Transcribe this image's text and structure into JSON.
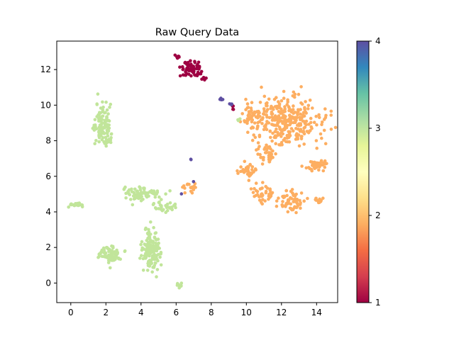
{
  "chart_data": {
    "type": "scatter",
    "title": "Raw Query Data",
    "xlabel": "",
    "ylabel": "",
    "xlim": [
      -0.8,
      15.2
    ],
    "ylim": [
      -1.1,
      13.6
    ],
    "xticks": [
      0,
      2,
      4,
      6,
      8,
      10,
      12,
      14
    ],
    "yticks": [
      0,
      2,
      4,
      6,
      8,
      10,
      12
    ],
    "grid": false,
    "colorbar": {
      "min": 1,
      "max": 4,
      "ticks": [
        1,
        2,
        3,
        4
      ],
      "colormap": "Spectral",
      "stops": [
        "#9e0142",
        "#d53e4f",
        "#f46d43",
        "#fdae61",
        "#fee08b",
        "#ffffbf",
        "#e6f598",
        "#abdda4",
        "#66c2a5",
        "#3288bd",
        "#5e4fa2"
      ]
    },
    "series": [
      {
        "label_value": 1,
        "color": "#9e0142",
        "clusters": [
          {
            "cx": 6.9,
            "cy": 12.0,
            "rx": 0.55,
            "ry": 0.45,
            "n": 70
          },
          {
            "cx": 6.1,
            "cy": 12.7,
            "rx": 0.15,
            "ry": 0.12,
            "n": 8
          },
          {
            "cx": 7.6,
            "cy": 11.5,
            "rx": 0.12,
            "ry": 0.08,
            "n": 5
          },
          {
            "cx": 9.25,
            "cy": 9.85,
            "rx": 0.08,
            "ry": 0.12,
            "n": 4
          }
        ]
      },
      {
        "label_value": 2,
        "color": "#fdae61",
        "clusters": [
          {
            "cx": 12.3,
            "cy": 9.2,
            "rx": 1.9,
            "ry": 1.35,
            "n": 320
          },
          {
            "cx": 10.2,
            "cy": 9.5,
            "rx": 0.5,
            "ry": 0.5,
            "n": 30
          },
          {
            "cx": 13.9,
            "cy": 6.6,
            "rx": 0.5,
            "ry": 0.3,
            "n": 40
          },
          {
            "cx": 10.1,
            "cy": 6.3,
            "rx": 0.55,
            "ry": 0.35,
            "n": 40
          },
          {
            "cx": 11.2,
            "cy": 7.2,
            "rx": 0.6,
            "ry": 0.5,
            "n": 35
          },
          {
            "cx": 11.0,
            "cy": 5.0,
            "rx": 0.55,
            "ry": 0.55,
            "n": 40
          },
          {
            "cx": 12.6,
            "cy": 4.6,
            "rx": 0.7,
            "ry": 0.6,
            "n": 60
          },
          {
            "cx": 14.1,
            "cy": 4.6,
            "rx": 0.25,
            "ry": 0.2,
            "n": 12
          },
          {
            "cx": 6.8,
            "cy": 5.4,
            "rx": 0.35,
            "ry": 0.3,
            "n": 18
          }
        ]
      },
      {
        "label_value": 3,
        "color": "#c1e59a",
        "clusters": [
          {
            "cx": 1.8,
            "cy": 9.1,
            "rx": 0.45,
            "ry": 1.0,
            "n": 110
          },
          {
            "cx": 2.1,
            "cy": 8.0,
            "rx": 0.25,
            "ry": 0.4,
            "n": 15
          },
          {
            "cx": 0.4,
            "cy": 4.4,
            "rx": 0.45,
            "ry": 0.12,
            "n": 20
          },
          {
            "cx": 3.9,
            "cy": 5.0,
            "rx": 1.1,
            "ry": 0.4,
            "n": 75
          },
          {
            "cx": 5.4,
            "cy": 4.3,
            "rx": 0.7,
            "ry": 0.35,
            "n": 30
          },
          {
            "cx": 2.3,
            "cy": 1.6,
            "rx": 0.65,
            "ry": 0.45,
            "n": 80
          },
          {
            "cx": 4.6,
            "cy": 1.8,
            "rx": 0.55,
            "ry": 1.1,
            "n": 150
          },
          {
            "cx": 6.2,
            "cy": -0.1,
            "rx": 0.15,
            "ry": 0.25,
            "n": 10
          },
          {
            "cx": 9.6,
            "cy": 9.2,
            "rx": 0.1,
            "ry": 0.1,
            "n": 3
          }
        ]
      },
      {
        "label_value": 4,
        "color": "#5e4fa2",
        "clusters": [
          {
            "cx": 8.6,
            "cy": 10.35,
            "rx": 0.12,
            "ry": 0.08,
            "n": 5
          },
          {
            "cx": 9.15,
            "cy": 10.05,
            "rx": 0.1,
            "ry": 0.06,
            "n": 4
          },
          {
            "cx": 6.85,
            "cy": 6.95,
            "rx": 0.04,
            "ry": 0.06,
            "n": 2
          },
          {
            "cx": 7.0,
            "cy": 5.7,
            "rx": 0.04,
            "ry": 0.04,
            "n": 1
          },
          {
            "cx": 6.3,
            "cy": 5.0,
            "rx": 0.04,
            "ry": 0.04,
            "n": 1
          }
        ]
      }
    ]
  }
}
